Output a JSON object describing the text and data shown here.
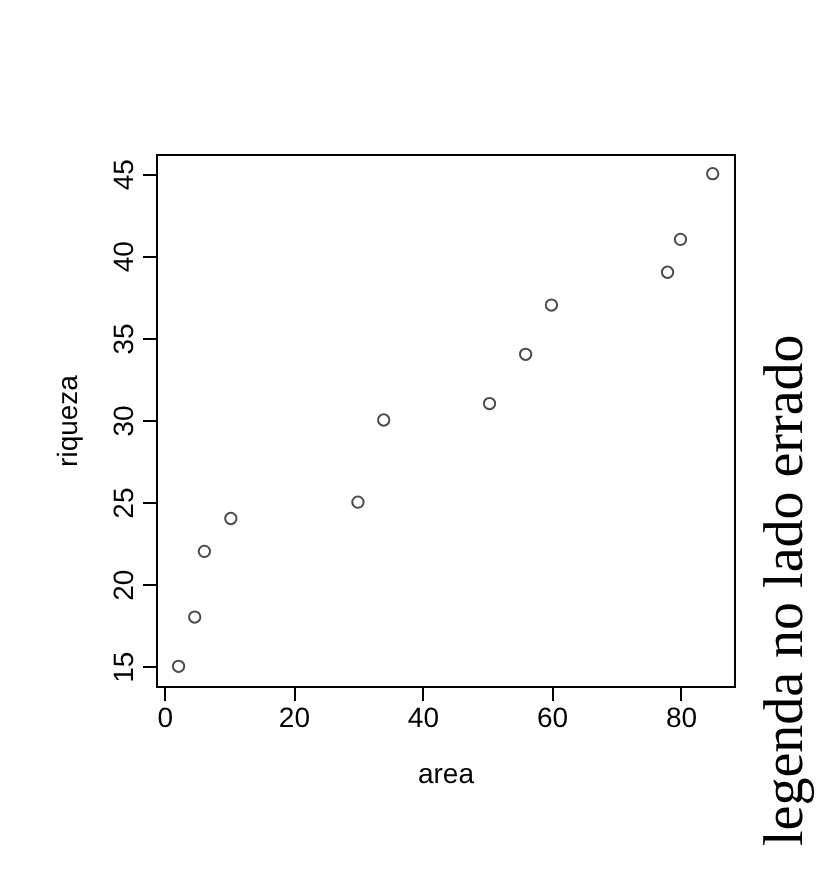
{
  "chart_data": {
    "type": "scatter",
    "xlabel": "area",
    "ylabel": "riqueza",
    "x": [
      2.2,
      4.7,
      6.2,
      10.3,
      30,
      34,
      50.4,
      56,
      60,
      78,
      80,
      85
    ],
    "values": [
      15,
      18,
      22,
      24,
      25,
      30,
      31,
      34,
      37,
      39,
      41,
      45
    ],
    "color": "#000000",
    "marker": "circle",
    "grid": false,
    "xlim": [
      -1.3,
      88.3
    ],
    "ylim": [
      13.8,
      46.2
    ],
    "xticks": [
      0,
      20,
      40,
      60,
      80
    ],
    "yticks": [
      15,
      20,
      25,
      30,
      35,
      40,
      45
    ],
    "annotations": [
      "legenda no lado errado"
    ]
  }
}
